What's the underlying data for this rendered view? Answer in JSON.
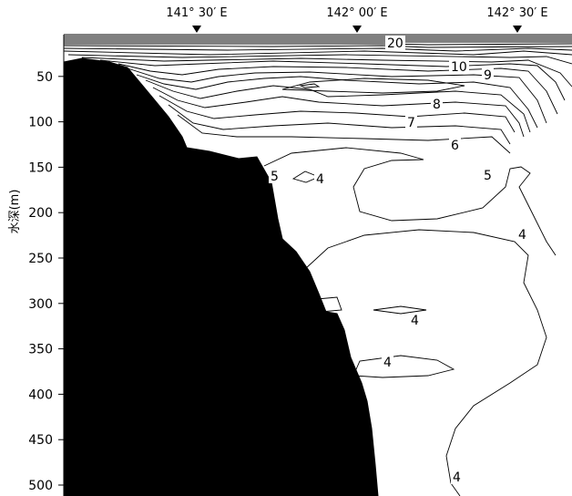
{
  "chart_data": {
    "type": "contour",
    "y_axis": {
      "label": "水深(m)",
      "ticks": [
        50,
        100,
        150,
        200,
        250,
        300,
        350,
        400,
        450,
        500
      ],
      "range": [
        0,
        510
      ],
      "inverted": true
    },
    "top_markers": [
      {
        "label": "141° 30′ E"
      },
      {
        "label": "142° 00′ E"
      },
      {
        "label": "142° 30′ E"
      }
    ],
    "contour_labels": [
      "20",
      "10",
      "9",
      "8",
      "7",
      "6",
      "5",
      "4",
      "5",
      "4",
      "4",
      "4",
      "4"
    ],
    "seafloor_fill": "#000000",
    "line_color": "#000000",
    "background": "#ffffff"
  }
}
